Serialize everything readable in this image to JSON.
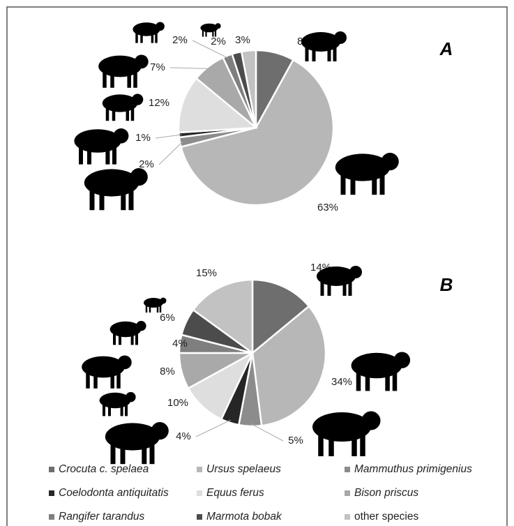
{
  "chart_data": [
    {
      "type": "pie",
      "title": "A",
      "categories": [
        "Crocuta c. spelaea",
        "Ursus spelaeus",
        "Mammuthus primigenius",
        "Coelodonta antiquitatis",
        "Equus ferus",
        "Bison priscus",
        "Rangifer tarandus",
        "Marmota bobak",
        "other species"
      ],
      "values": [
        8,
        63,
        2,
        1,
        12,
        7,
        2,
        2,
        3
      ],
      "value_labels": [
        "8%",
        "63%",
        "2%",
        "1%",
        "12%",
        "7%",
        "2%",
        "2%",
        "3%"
      ],
      "colors": [
        "#6e6e6e",
        "#b7b7b7",
        "#8c8c8c",
        "#262626",
        "#dedede",
        "#a9a9a9",
        "#7f7f7f",
        "#4c4c4c",
        "#c2c2c2"
      ]
    },
    {
      "type": "pie",
      "title": "B",
      "categories": [
        "Crocuta c. spelaea",
        "Ursus spelaeus",
        "Mammuthus primigenius",
        "Coelodonta antiquitatis",
        "Equus ferus",
        "Bison priscus",
        "Rangifer tarandus",
        "Marmota bobak",
        "other species"
      ],
      "values": [
        14,
        34,
        5,
        4,
        10,
        8,
        4,
        6,
        15
      ],
      "value_labels": [
        "14%",
        "34%",
        "5%",
        "4%",
        "10%",
        "8%",
        "4%",
        "6%",
        "15%"
      ],
      "colors": [
        "#6e6e6e",
        "#b7b7b7",
        "#8c8c8c",
        "#262626",
        "#dedede",
        "#a9a9a9",
        "#7f7f7f",
        "#4c4c4c",
        "#c2c2c2"
      ]
    }
  ]
}
